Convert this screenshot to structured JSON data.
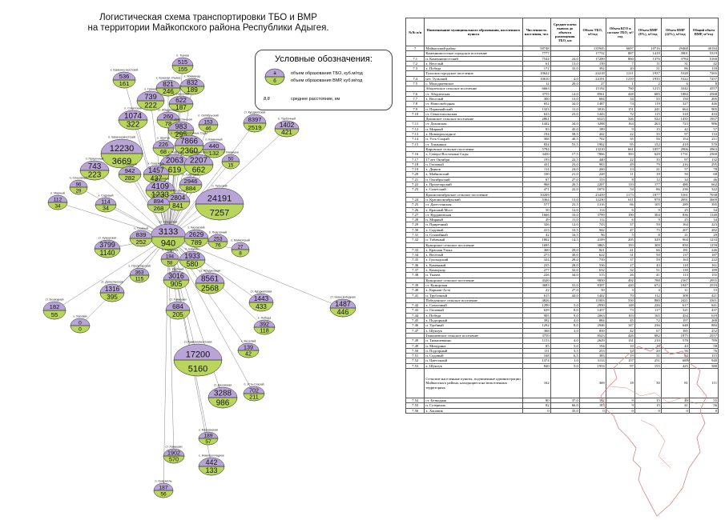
{
  "title": {
    "line1": "Логистическая схема транспортировки ТБО и ВМР",
    "line2": "на территории Майкопского района Республики Адыгея."
  },
  "legend": {
    "title": "Условные обозначения:",
    "tbo_label": "объем образования ТБО, куб.м/год",
    "vmr_label": "объем образования ВМР, куб.м/год",
    "dist_label": "среднее расстояние, км",
    "sym_a": "а",
    "sym_b": "б",
    "dist_sym": "8,8"
  },
  "colors": {
    "tbo": "#b9a4d8",
    "vmr": "#b8d65c",
    "line": "#777777"
  },
  "nodes": [
    {
      "label": "п. Ткачев",
      "tbo": "515",
      "vmr": "155"
    },
    {
      "label": "х. Красная Ульяна",
      "tbo": "821",
      "vmr": "246"
    },
    {
      "label": "х. Коммунар",
      "tbo": "832",
      "vmr": "189"
    },
    {
      "label": "х. Каменно-мостский",
      "tbo": "536",
      "vmr": "161"
    },
    {
      "label": "х. Гринев",
      "tbo": "739",
      "vmr": "222"
    },
    {
      "label": "х. Северный",
      "tbo": "622",
      "vmr": "187"
    },
    {
      "label": "п. Советский",
      "tbo": "1074",
      "vmr": "322"
    },
    {
      "label": "ст. Абадзехская",
      "tbo": "260",
      "vmr": "78"
    },
    {
      "label": "ст. Дагестанская",
      "tbo": "983",
      "vmr": "295"
    },
    {
      "label": "п. Октябрьский",
      "tbo": "153",
      "vmr": "46"
    },
    {
      "label": "ст. Курджипская",
      "tbo": "8397",
      "vmr": "2519"
    },
    {
      "label": "п. Трубочный",
      "tbo": "1402",
      "vmr": "421"
    },
    {
      "label": "п. Северо-Восточные Сады",
      "tbo": "7866",
      "vmr": "2360"
    },
    {
      "label": "х. Шунтук",
      "tbo": "226",
      "vmr": "68"
    },
    {
      "label": "п. Каменный",
      "tbo": "440",
      "vmr": "132"
    },
    {
      "label": "п. Каменномостский",
      "tbo": "12230",
      "vmr": "3669"
    },
    {
      "label": "х. Победа",
      "tbo": "2063",
      "vmr": "619"
    },
    {
      "label": "х. Красный Мост",
      "tbo": "2207",
      "vmr": "662"
    },
    {
      "label": "х. Хамышки",
      "tbo": "50",
      "vmr": "15"
    },
    {
      "label": "п. Приречный",
      "tbo": "743",
      "vmr": "223"
    },
    {
      "label": "п. Мирный",
      "tbo": "942",
      "vmr": "282"
    },
    {
      "label": "х. Гузерипль",
      "tbo": "1457",
      "vmr": "437"
    },
    {
      "label": "п. Табачный",
      "tbo": "2946",
      "vmr": "884"
    },
    {
      "label": "п. Спокойный",
      "tbo": "96",
      "vmr": "29"
    },
    {
      "label": "п. Цветочный",
      "tbo": "4109",
      "vmr": "1233"
    },
    {
      "label": "х. Прогресс",
      "tbo": "2804",
      "vmr": "841"
    },
    {
      "label": "п. Мирный",
      "tbo": "112",
      "vmr": "34"
    },
    {
      "label": "х. Веселый",
      "tbo": "894",
      "vmr": "268"
    },
    {
      "label": "х. Садовый",
      "tbo": "114",
      "vmr": "34"
    },
    {
      "label": "п. Тульский",
      "tbo": "24191",
      "vmr": "7257"
    },
    {
      "label": "ст. Кужорская",
      "tbo": "3133",
      "vmr": "940"
    },
    {
      "label": "х. Грозный",
      "tbo": "839",
      "vmr": "252"
    },
    {
      "label": "х. Кировский",
      "tbo": "2629",
      "vmr": "789"
    },
    {
      "label": "п. Подгорный",
      "tbo": "253",
      "vmr": "76"
    },
    {
      "label": "х. Майкопский",
      "tbo": "27",
      "vmr": "8"
    },
    {
      "label": "ст. Кужорская",
      "tbo": "3799",
      "vmr": "1140"
    },
    {
      "label": "п. Мичурина",
      "tbo": "194",
      "vmr": "58"
    },
    {
      "label": "п. Шаумян",
      "tbo": "1933",
      "vmr": "580"
    },
    {
      "label": "х. Пролетарский",
      "tbo": "363",
      "vmr": "115"
    },
    {
      "label": "ст. Дагестанская",
      "tbo": "1316",
      "vmr": "395"
    },
    {
      "label": "ст. Безводная",
      "tbo": "182",
      "vmr": "55"
    },
    {
      "label": "п. Удобный",
      "tbo": "3016",
      "vmr": "905"
    },
    {
      "label": "ст. Абадзехская",
      "tbo": "8561",
      "vmr": "2568"
    },
    {
      "label": "ст. Курджипская",
      "tbo": "1443",
      "vmr": "433"
    },
    {
      "label": "ст. Новосвободная",
      "tbo": "1487",
      "vmr": "446"
    },
    {
      "label": "ст. Хамышки",
      "tbo": "684",
      "vmr": "205"
    },
    {
      "label": "х. Хаповик",
      "tbo": "0",
      "vmr": "0"
    },
    {
      "label": "х. Победа",
      "tbo": "392",
      "vmr": "118"
    },
    {
      "label": "ст. Каменномостская",
      "tbo": "17200",
      "vmr": "5160"
    },
    {
      "label": "х. Веселый",
      "tbo": "139",
      "vmr": "42"
    },
    {
      "label": "ст. Даховская",
      "tbo": "3288",
      "vmr": "986"
    },
    {
      "label": "п. Усть-Сахрай",
      "tbo": "702",
      "vmr": "211"
    },
    {
      "label": "х. Мерчанская",
      "tbo": "189",
      "vmr": "57"
    },
    {
      "label": "ст. Хамышки",
      "tbo": "1902",
      "vmr": "570"
    },
    {
      "label": "х. Новопрохладное",
      "tbo": "442",
      "vmr": "133"
    },
    {
      "label": "п. Гузерипль",
      "tbo": "187",
      "vmr": "56"
    }
  ],
  "table": {
    "headers": [
      "№№ п/п",
      "Наименование муниципального образования, населенного пункта",
      "Численность населения, чел",
      "Среднее плечо вывоза до объекта размещения ТБО, км",
      "Объем ТБО, м³/год",
      "Объем КГО в составе ТБО, м³/год",
      "Объем ВМР (8%), м³/год",
      "Объем ВМР (22%), м³/год",
      "Общий объем ВМР, м³/год"
    ],
    "rows": [
      [
        "7",
        "Майкопский район",
        "58748",
        "",
        "135945",
        "6697",
        "10716",
        "29468",
        "40184"
      ],
      [
        "",
        "Каменномостское городское поселение",
        "7777",
        "",
        "17732",
        "887",
        "1419",
        "3901",
        "5319"
      ],
      [
        "7.1",
        "п. Каменномостский",
        "7544",
        "24,0",
        "17200",
        "860",
        "1376",
        "3784",
        "5160"
      ],
      [
        "7.2",
        "х. Веселый",
        "61",
        "13,0",
        "139",
        "7",
        "11",
        "31",
        "42"
      ],
      [
        "7.3",
        "х. Победа",
        "172",
        "33,0",
        "392",
        "20",
        "31",
        "86",
        "118"
      ],
      [
        "",
        "Тульское городское поселение",
        "10622",
        "",
        "24218",
        "1211",
        "1937",
        "5328",
        "7265"
      ],
      [
        "7.4",
        "пгт. Тульский",
        "10610",
        "4,0",
        "24191",
        "1210",
        "1935",
        "5322",
        "7257"
      ],
      [
        "7.5",
        "с. Малоджеевское",
        "12",
        "20,0",
        "27",
        "1",
        "2",
        "6",
        "8"
      ],
      [
        "",
        "Абадзехское сельское поселение",
        "6663",
        "",
        "15192",
        "760",
        "1215",
        "3342",
        "4557"
      ],
      [
        "7.6",
        "ст. Абадзехская",
        "3755",
        "14,0",
        "8561",
        "428",
        "685",
        "1884",
        "2568"
      ],
      [
        "7.7",
        "х. Веселый",
        "300",
        "13,0",
        "684",
        "34",
        "55",
        "150",
        "205"
      ],
      [
        "7.8",
        "ст. Новосвободная",
        "652",
        "34,0",
        "1487",
        "74",
        "119",
        "327",
        "446"
      ],
      [
        "7.9",
        "п. Первомайский",
        "1323",
        "11,0",
        "3016",
        "151",
        "241",
        "664",
        "905"
      ],
      [
        "7.10",
        "ст. Севастопольская",
        "633",
        "23,0",
        "1443",
        "72",
        "115",
        "318",
        "433"
      ],
      [
        "",
        "Даховское сельское поселение",
        "2861",
        "",
        "6523",
        "326",
        "522",
        "1435",
        "1957"
      ],
      [
        "7.11",
        "ст. Даховская",
        "1442",
        "34,0",
        "3288",
        "164",
        "263",
        "723",
        "986"
      ],
      [
        "7.12",
        "п. Мирный",
        "83",
        "45,0",
        "189",
        "9",
        "15",
        "42",
        "57"
      ],
      [
        "7.13",
        "х. Новопрохладное",
        "194",
        "58,5",
        "442",
        "22",
        "35",
        "97",
        "133"
      ],
      [
        "7.14",
        "п. Усть-Сахрай",
        "308",
        "40,5",
        "702",
        "35",
        "56",
        "154",
        "211"
      ],
      [
        "7.15",
        "ст. Хамышки",
        "834",
        "53,5",
        "1902",
        "95",
        "152",
        "418",
        "570"
      ],
      [
        "",
        "Кировское сельское поселение",
        "5794",
        "",
        "13210",
        "661",
        "1057",
        "2906",
        "3963"
      ],
      [
        "7.16",
        "х. Северо-Восточные Сады",
        "3450",
        "17,5",
        "7866",
        "393",
        "629",
        "1731",
        "2360"
      ],
      [
        "7.17",
        "17 лет Октября",
        "193",
        "22,5",
        "440",
        "22",
        "35",
        "97",
        "132"
      ],
      [
        "7.18",
        "п. Гюзовый",
        "431",
        "23,0",
        "983",
        "49",
        "79",
        "216",
        "295"
      ],
      [
        "7.19",
        "х. Дьяков",
        "114",
        "24,0",
        "260",
        "13",
        "21",
        "57",
        "78"
      ],
      [
        "7.20",
        "х. Майкопский",
        "100",
        "21,0",
        "228",
        "11",
        "18",
        "50",
        "68"
      ],
      [
        "7.21",
        "п. Октябрьский",
        "67",
        "27,0",
        "153",
        "8",
        "12",
        "34",
        "46"
      ],
      [
        "7.22",
        "х. Пролетарский",
        "968",
        "20,5",
        "2207",
        "110",
        "177",
        "486",
        "662"
      ],
      [
        "7.23",
        "х. Советский",
        "471",
        "22,0",
        "1074",
        "54",
        "86",
        "236",
        "322"
      ],
      [
        "",
        "Краснооктябрьское сельское поселение",
        "10209",
        "",
        "23459",
        "1173",
        "1877",
        "5161",
        "7038"
      ],
      [
        "7.24",
        "п. Краснооктябрьский",
        "5364",
        "13,0",
        "12230",
        "611",
        "978",
        "2691",
        "3669"
      ],
      [
        "7.25",
        "ст. Дагестанская",
        "577",
        "23,5",
        "1316",
        "66",
        "105",
        "289",
        "395"
      ],
      [
        "7.26",
        "х. Красный Мост",
        "50",
        "12,0",
        "114",
        "6",
        "9",
        "25",
        "34"
      ],
      [
        "7.27",
        "ст. Курджипская",
        "1666",
        "10,0",
        "3799",
        "190",
        "304",
        "836",
        "1140"
      ],
      [
        "7.28",
        "п. Мирный",
        "49",
        "11,0",
        "112",
        "6",
        "9",
        "25",
        "34"
      ],
      [
        "7.29",
        "п. Приречный",
        "326",
        "12,0",
        "743",
        "37",
        "59",
        "164",
        "223"
      ],
      [
        "7.30",
        "х. Садовый",
        "413",
        "10,5",
        "942",
        "47",
        "75",
        "207",
        "282"
      ],
      [
        "7.31",
        "п. Спокойный",
        "42",
        "16,5",
        "96",
        "5",
        "8",
        "21",
        "29"
      ],
      [
        "7.32",
        "п. Табачный",
        "1802",
        "14,5",
        "4109",
        "205",
        "329",
        "904",
        "1233"
      ],
      [
        "",
        "Кужорское сельское поселение",
        "1695",
        "",
        "3865",
        "193",
        "309",
        "850",
        "1159"
      ],
      [
        "7.33",
        "х. Красная Улька",
        "360",
        "29,0",
        "821",
        "41",
        "66",
        "181",
        "246"
      ],
      [
        "7.34",
        "х. Весёлый",
        "273",
        "30,0",
        "622",
        "31",
        "50",
        "137",
        "187"
      ],
      [
        "7.35",
        "х. Грозыдский",
        "324",
        "28,0",
        "739",
        "37",
        "59",
        "163",
        "222"
      ],
      [
        "7.36",
        "х. Каменный",
        "235",
        "28,0",
        "536",
        "27",
        "43",
        "118",
        "161"
      ],
      [
        "7.37",
        "х. Коммунэр",
        "277",
        "32,0",
        "632",
        "32",
        "51",
        "139",
        "189"
      ],
      [
        "7.38",
        "п. Ткачев",
        "226",
        "34,0",
        "515",
        "26",
        "41",
        "113",
        "155"
      ],
      [
        "",
        "Кужорское сельское поселение",
        "4320",
        "",
        "9850",
        "492",
        "788",
        "2167",
        "2955"
      ],
      [
        "7.39",
        "ст. Кужорская",
        "3683",
        "31,0",
        "8397",
        "420",
        "672",
        "1847",
        "2519"
      ],
      [
        "7.40",
        "х. Карнаш-Аста",
        "22",
        "27,0",
        "50",
        "3",
        "4",
        "11",
        "15"
      ],
      [
        "7.41",
        "п. Трубочный",
        "615",
        "44,0",
        "1402",
        "70",
        "112",
        "308",
        "421"
      ],
      [
        "",
        "Победенское сельское поселение",
        "4826",
        "",
        "11003",
        "550",
        "880",
        "2421",
        "3301"
      ],
      [
        "7.42",
        "х. Совхозный",
        "1290",
        "5,0",
        "2950",
        "148",
        "226",
        "617",
        "841"
      ],
      [
        "7.43",
        "п. Гюзовый",
        "639",
        "8,0",
        "1457",
        "73",
        "117",
        "321",
        "437"
      ],
      [
        "7.44",
        "х. Победа",
        "905",
        "9,0",
        "2063",
        "103",
        "165",
        "454",
        "619"
      ],
      [
        "7.45",
        "х. Подгорный",
        "392",
        "4,0",
        "884",
        "45",
        "72",
        "197",
        "268"
      ],
      [
        "7.46",
        "п. Удобный",
        "1292",
        "8,0",
        "2946",
        "147",
        "236",
        "648",
        "884"
      ],
      [
        "7.47",
        "х. Шунтук",
        "368",
        "3,0",
        "839",
        "42",
        "67",
        "185",
        "252"
      ],
      [
        "",
        "Тимашевское сельское поселение",
        "3759",
        "",
        "8523",
        "426",
        "682",
        "1875",
        "2557"
      ],
      [
        "7.49",
        "п. Тимашевкино",
        "1153",
        "4,0",
        "2629",
        "131",
        "210",
        "578",
        "789"
      ],
      [
        "7.49",
        "п. Мичурина",
        "85",
        "5,0",
        "194",
        "10",
        "16",
        "43",
        "58"
      ],
      [
        "7.50",
        "п. Подгорный",
        "111",
        "3,5",
        "253",
        "13",
        "20",
        "56",
        "76"
      ],
      [
        "7.51",
        "п. Садовый",
        "168",
        "6,5",
        "383",
        "19",
        "31",
        "84",
        "115"
      ],
      [
        "7.52",
        "п. Цветочный",
        "1374",
        "1,0",
        "3133",
        "157",
        "251",
        "689",
        "940"
      ],
      [
        "7.53",
        "х. Шунтук",
        "840",
        "5,0",
        "1933",
        "97",
        "155",
        "425",
        "580"
      ],
      [
        "",
        "Сельские населенные пункты, подчиненные администрации Майкопского района, находящиеся на межселенных территориях",
        "162",
        "",
        "369",
        "18",
        "30",
        "81",
        "111"
      ],
      [
        "7.54",
        "ст. Безводная",
        "80",
        "37,0",
        "182",
        "9",
        "15",
        "40",
        "55"
      ],
      [
        "7.55",
        "п. Гузерипль",
        "82",
        "66,0",
        "187",
        "9",
        "15",
        "41",
        "56"
      ],
      [
        "7.56",
        "х. Хаповик",
        "0",
        "35,0",
        "0",
        "0",
        "0",
        "0",
        "0"
      ]
    ]
  }
}
